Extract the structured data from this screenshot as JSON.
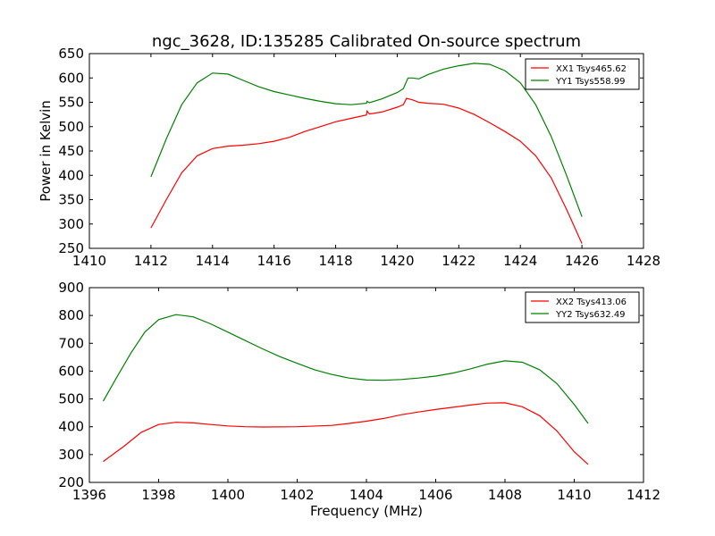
{
  "chart_data": [
    {
      "type": "line",
      "title": "ngc_3628, ID:135285 Calibrated On-source spectrum",
      "xlabel": "",
      "ylabel": "Power in Kelvin",
      "xlim": [
        1410,
        1428
      ],
      "ylim": [
        250,
        650
      ],
      "xticks": [
        1410,
        1412,
        1414,
        1416,
        1418,
        1420,
        1422,
        1424,
        1426,
        1428
      ],
      "yticks": [
        250,
        300,
        350,
        400,
        450,
        500,
        550,
        600,
        650
      ],
      "legend": "top-right",
      "grid": false,
      "series": [
        {
          "name": "XX1 Tsys465.62",
          "color": "#ff0000",
          "points": [
            [
              1412.0,
              292
            ],
            [
              1412.5,
              350
            ],
            [
              1413.0,
              405
            ],
            [
              1413.5,
              440
            ],
            [
              1414.0,
              455
            ],
            [
              1414.5,
              460
            ],
            [
              1415.0,
              462
            ],
            [
              1415.5,
              465
            ],
            [
              1416.0,
              470
            ],
            [
              1416.5,
              478
            ],
            [
              1417.0,
              490
            ],
            [
              1417.5,
              500
            ],
            [
              1418.0,
              510
            ],
            [
              1418.5,
              517
            ],
            [
              1419.0,
              524
            ],
            [
              1419.02,
              532
            ],
            [
              1419.1,
              526
            ],
            [
              1419.5,
              530
            ],
            [
              1420.0,
              540
            ],
            [
              1420.2,
              545
            ],
            [
              1420.3,
              558
            ],
            [
              1420.5,
              555
            ],
            [
              1420.7,
              550
            ],
            [
              1421.0,
              548
            ],
            [
              1421.5,
              546
            ],
            [
              1422.0,
              538
            ],
            [
              1422.5,
              525
            ],
            [
              1423.0,
              508
            ],
            [
              1423.5,
              490
            ],
            [
              1424.0,
              470
            ],
            [
              1424.5,
              440
            ],
            [
              1425.0,
              395
            ],
            [
              1425.5,
              330
            ],
            [
              1426.0,
              260
            ]
          ]
        },
        {
          "name": "YY1 Tsys558.99",
          "color": "#008000",
          "points": [
            [
              1412.0,
              397
            ],
            [
              1412.5,
              475
            ],
            [
              1413.0,
              545
            ],
            [
              1413.5,
              590
            ],
            [
              1414.0,
              610
            ],
            [
              1414.5,
              608
            ],
            [
              1415.0,
              595
            ],
            [
              1415.5,
              582
            ],
            [
              1416.0,
              572
            ],
            [
              1416.5,
              565
            ],
            [
              1417.0,
              558
            ],
            [
              1417.5,
              552
            ],
            [
              1418.0,
              547
            ],
            [
              1418.5,
              545
            ],
            [
              1419.0,
              548
            ],
            [
              1419.02,
              552
            ],
            [
              1419.1,
              549
            ],
            [
              1419.5,
              557
            ],
            [
              1420.0,
              570
            ],
            [
              1420.2,
              578
            ],
            [
              1420.35,
              600
            ],
            [
              1420.5,
              600
            ],
            [
              1420.7,
              598
            ],
            [
              1421.0,
              607
            ],
            [
              1421.5,
              618
            ],
            [
              1422.0,
              625
            ],
            [
              1422.5,
              630
            ],
            [
              1423.0,
              628
            ],
            [
              1423.5,
              615
            ],
            [
              1424.0,
              590
            ],
            [
              1424.5,
              545
            ],
            [
              1425.0,
              480
            ],
            [
              1425.5,
              400
            ],
            [
              1426.0,
              315
            ]
          ]
        }
      ]
    },
    {
      "type": "line",
      "title": "",
      "xlabel": "Frequency (MHz)",
      "ylabel": "",
      "xlim": [
        1396,
        1412
      ],
      "ylim": [
        200,
        900
      ],
      "xticks": [
        1396,
        1398,
        1400,
        1402,
        1404,
        1406,
        1408,
        1410,
        1412
      ],
      "yticks": [
        200,
        300,
        400,
        500,
        600,
        700,
        800,
        900
      ],
      "legend": "top-right",
      "grid": false,
      "series": [
        {
          "name": "XX2 Tsys413.06",
          "color": "#ff0000",
          "points": [
            [
              1396.4,
              275
            ],
            [
              1397.0,
              330
            ],
            [
              1397.5,
              380
            ],
            [
              1398.0,
              408
            ],
            [
              1398.5,
              416
            ],
            [
              1399.0,
              414
            ],
            [
              1399.5,
              408
            ],
            [
              1400.0,
              403
            ],
            [
              1400.5,
              400
            ],
            [
              1401.0,
              399
            ],
            [
              1402.0,
              400
            ],
            [
              1403.0,
              405
            ],
            [
              1403.5,
              412
            ],
            [
              1404.0,
              420
            ],
            [
              1404.5,
              430
            ],
            [
              1405.0,
              443
            ],
            [
              1405.5,
              453
            ],
            [
              1406.0,
              462
            ],
            [
              1406.5,
              470
            ],
            [
              1407.0,
              478
            ],
            [
              1407.5,
              485
            ],
            [
              1408.0,
              486
            ],
            [
              1408.5,
              472
            ],
            [
              1409.0,
              440
            ],
            [
              1409.5,
              385
            ],
            [
              1410.0,
              310
            ],
            [
              1410.4,
              265
            ]
          ]
        },
        {
          "name": "YY2 Tsys632.49",
          "color": "#008000",
          "points": [
            [
              1396.4,
              492
            ],
            [
              1396.8,
              580
            ],
            [
              1397.2,
              665
            ],
            [
              1397.6,
              740
            ],
            [
              1398.0,
              785
            ],
            [
              1398.5,
              803
            ],
            [
              1399.0,
              795
            ],
            [
              1399.5,
              770
            ],
            [
              1400.0,
              740
            ],
            [
              1400.5,
              710
            ],
            [
              1401.0,
              680
            ],
            [
              1401.5,
              652
            ],
            [
              1402.0,
              628
            ],
            [
              1402.5,
              605
            ],
            [
              1403.0,
              588
            ],
            [
              1403.5,
              575
            ],
            [
              1404.0,
              568
            ],
            [
              1404.5,
              567
            ],
            [
              1405.0,
              570
            ],
            [
              1405.5,
              575
            ],
            [
              1406.0,
              582
            ],
            [
              1406.5,
              593
            ],
            [
              1407.0,
              608
            ],
            [
              1407.5,
              625
            ],
            [
              1408.0,
              637
            ],
            [
              1408.5,
              632
            ],
            [
              1409.0,
              605
            ],
            [
              1409.5,
              555
            ],
            [
              1410.0,
              480
            ],
            [
              1410.4,
              412
            ]
          ]
        }
      ]
    }
  ]
}
